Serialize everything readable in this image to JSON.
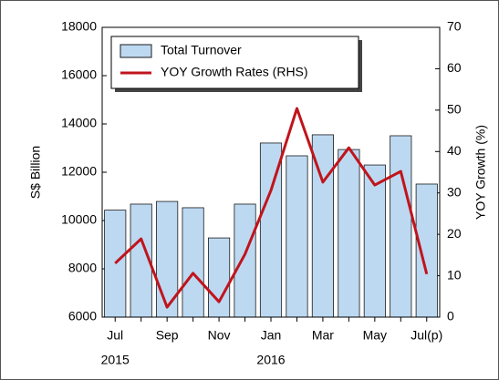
{
  "chart_data": {
    "type": "bar_line",
    "categories": [
      "Jul",
      null,
      "Sep",
      null,
      "Nov",
      null,
      "Jan",
      null,
      "Mar",
      null,
      "May",
      null,
      "Jul(p)"
    ],
    "annotations": [
      "2015",
      "2016"
    ],
    "ylabel": "S$ Billion",
    "y2label": "YOY Growth (%)",
    "series": [
      {
        "name": "Total Turnover",
        "type": "bar",
        "color": "#bdd9f2",
        "values": [
          10430,
          10680,
          10790,
          10530,
          9280,
          10680,
          13210,
          12680,
          13550,
          12940,
          12300,
          13510,
          11510
        ]
      },
      {
        "name": "YOY Growth Rates (RHS)",
        "type": "line",
        "axis": "y2",
        "color": "#c0141c",
        "values": [
          13.0,
          18.9,
          2.4,
          10.6,
          3.7,
          15.2,
          30.6,
          50.4,
          32.6,
          40.9,
          31.9,
          35.2,
          10.4
        ]
      }
    ],
    "ylim": [
      6000,
      18000
    ],
    "yticks": [
      6000,
      8000,
      10000,
      12000,
      14000,
      16000,
      18000
    ],
    "y2lim": [
      0,
      70
    ],
    "y2ticks": [
      0,
      10,
      20,
      30,
      40,
      50,
      60,
      70
    ],
    "legend": "upper left"
  }
}
